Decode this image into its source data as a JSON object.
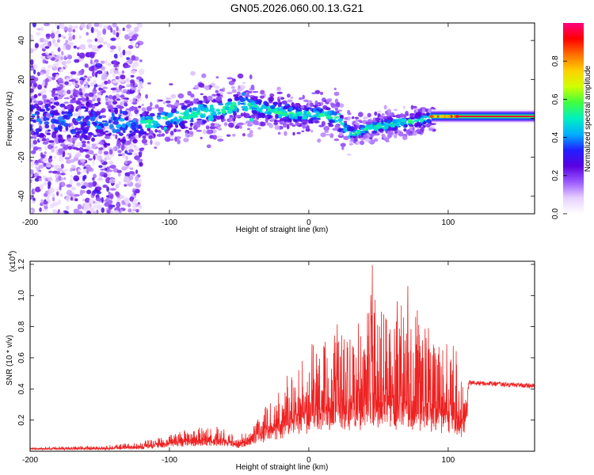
{
  "title": "GN05.2026.060.00.13.G21",
  "chart_data": [
    {
      "type": "heatmap",
      "xlabel": "Height of straight line (km)",
      "ylabel": "Frequency (Hz)",
      "xlim": [
        -200,
        162
      ],
      "ylim": [
        -49,
        49
      ],
      "xticks": [
        -200,
        -100,
        0,
        100
      ],
      "yticks": [
        -40,
        -20,
        0,
        20,
        40
      ],
      "colorbar": {
        "label": "Normalized spectral amplitude",
        "range": [
          0,
          1
        ],
        "ticks": [
          "0.0",
          "0.2",
          "0.4",
          "0.6",
          "0.8"
        ],
        "tick_values": [
          0,
          0.2,
          0.4,
          0.6,
          0.8
        ],
        "colors": [
          "#ffffff",
          "#e6d0ff",
          "#9b59ff",
          "#5a00e0",
          "#2020ff",
          "#00b0ff",
          "#00f0c0",
          "#40ff40",
          "#d0ff00",
          "#ffd000",
          "#ff7000",
          "#ff0000",
          "#ff0080"
        ]
      },
      "trend": {
        "x": [
          -200,
          -150,
          -120,
          -100,
          -80,
          -60,
          -50,
          -40,
          -25,
          -10,
          0,
          10,
          20,
          25,
          30,
          40,
          50,
          60,
          70,
          80,
          90,
          100,
          110,
          162
        ],
        "freq_hz": [
          0,
          -2,
          -3,
          0,
          3,
          5,
          7,
          6,
          4,
          2,
          2,
          2,
          0,
          -5,
          -8,
          -6,
          -4,
          -3,
          -2,
          -1,
          1,
          1,
          1,
          1
        ]
      },
      "color": "#ff0000"
    },
    {
      "type": "line",
      "xlabel": "Height of straight line (km)",
      "ylabel": "SNR (10 * v/v)",
      "exponent_label": "(x10",
      "exponent_power": "4",
      "exponent_close": ")",
      "xlim": [
        -200,
        162
      ],
      "ylim": [
        0,
        1.22
      ],
      "xticks": [
        -200,
        -100,
        0,
        100
      ],
      "yticks": [
        "0.2",
        "0.4",
        "0.6",
        "0.8",
        "1.0",
        "1.2"
      ],
      "ytick_values": [
        0.2,
        0.4,
        0.6,
        0.8,
        1.0,
        1.2
      ],
      "envelope": {
        "x": [
          -200,
          -150,
          -120,
          -110,
          -100,
          -90,
          -80,
          -70,
          -60,
          -50,
          -40,
          -30,
          -20,
          -10,
          0,
          10,
          20,
          30,
          40,
          45,
          50,
          60,
          70,
          80,
          90,
          100,
          105,
          110,
          115,
          162
        ],
        "baseline": [
          0.02,
          0.02,
          0.03,
          0.04,
          0.06,
          0.07,
          0.08,
          0.08,
          0.07,
          0.05,
          0.1,
          0.15,
          0.2,
          0.25,
          0.28,
          0.3,
          0.32,
          0.33,
          0.34,
          0.35,
          0.34,
          0.33,
          0.33,
          0.32,
          0.3,
          0.25,
          0.22,
          0.2,
          0.44,
          0.42
        ],
        "peak": [
          0.03,
          0.04,
          0.07,
          0.09,
          0.12,
          0.15,
          0.16,
          0.17,
          0.15,
          0.1,
          0.18,
          0.32,
          0.45,
          0.6,
          0.7,
          0.8,
          0.85,
          0.9,
          0.95,
          1.22,
          1.0,
          0.95,
          1.12,
          0.9,
          0.88,
          0.75,
          0.8,
          0.45,
          0.47,
          0.43
        ]
      },
      "color": "#ee2222"
    }
  ]
}
